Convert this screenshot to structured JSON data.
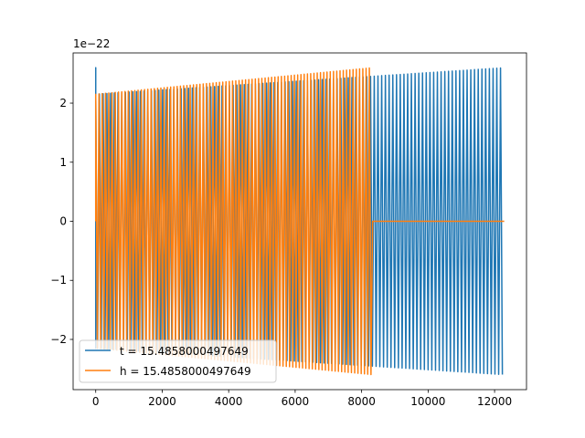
{
  "chart_data": {
    "type": "line",
    "title": "",
    "xlabel": "",
    "ylabel": "",
    "xlim": [
      -680,
      12960
    ],
    "ylim": [
      -2.85,
      2.85
    ],
    "y_scale_label": "1e−22",
    "x_ticks": [
      0,
      2000,
      4000,
      6000,
      8000,
      10000,
      12000
    ],
    "x_tick_labels": [
      "0",
      "2000",
      "4000",
      "6000",
      "8000",
      "10000",
      "12000"
    ],
    "y_ticks": [
      -2,
      -1,
      0,
      1,
      2
    ],
    "y_tick_labels": [
      "−2",
      "−1",
      "0",
      "1",
      "2"
    ],
    "grid": false,
    "legend_position": "lower-left",
    "series": [
      {
        "name": "t = 15.4858000497649",
        "color": "#1f77b4",
        "x_range": [
          0,
          12290
        ],
        "oscillation_start_amplitude": 2.15,
        "oscillation_end_amplitude": 2.6,
        "initial_spike": 2.6,
        "cycles": 110
      },
      {
        "name": "h = 15.4858000497649",
        "color": "#ff7f0e",
        "x_range": [
          0,
          8330
        ],
        "oscillation_start_amplitude": 2.15,
        "oscillation_end_amplitude": 2.6,
        "cycles": 85,
        "zero_after": 8330,
        "zero_until": 12290
      }
    ]
  }
}
